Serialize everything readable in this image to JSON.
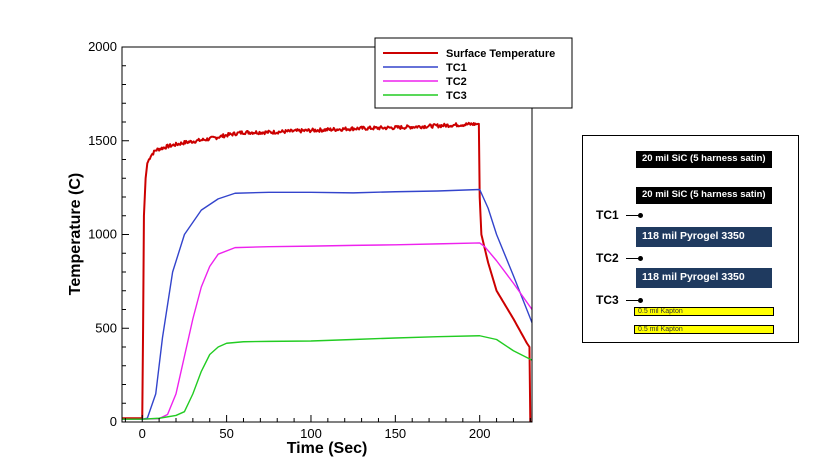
{
  "chart_data": {
    "type": "line",
    "title": "",
    "xlabel": "Time (Sec)",
    "ylabel": "Temperature (C)",
    "xlim": [
      -12,
      231
    ],
    "ylim": [
      0,
      2000
    ],
    "xticks": [
      0,
      50,
      100,
      150,
      200
    ],
    "yticks": [
      0,
      500,
      1000,
      1500,
      2000
    ],
    "grid": false,
    "legend_position": "top-right",
    "series": [
      {
        "name": "Surface Temperature",
        "color": "#cc0000",
        "noise": 10,
        "x": [
          -12,
          0,
          0.5,
          1,
          2,
          3,
          5,
          8,
          15,
          25,
          40,
          50,
          60,
          75,
          100,
          125,
          150,
          175,
          199,
          199.5,
          200,
          201,
          205,
          210,
          220,
          228,
          229.5,
          230,
          231
        ],
        "y": [
          20,
          20,
          500,
          1100,
          1300,
          1380,
          1420,
          1450,
          1470,
          1490,
          1510,
          1530,
          1545,
          1545,
          1555,
          1565,
          1570,
          1580,
          1590,
          1590,
          1200,
          1000,
          850,
          700,
          550,
          420,
          400,
          0,
          0
        ]
      },
      {
        "name": "TC1",
        "color": "#3344cc",
        "noise": 0,
        "x": [
          -12,
          0,
          3,
          8,
          12,
          18,
          25,
          35,
          45,
          55,
          75,
          100,
          125,
          150,
          175,
          200,
          205,
          210,
          220,
          231
        ],
        "y": [
          15,
          15,
          20,
          150,
          450,
          800,
          1000,
          1130,
          1190,
          1220,
          1225,
          1225,
          1222,
          1228,
          1232,
          1240,
          1140,
          1000,
          780,
          530
        ]
      },
      {
        "name": "TC2",
        "color": "#ee22ee",
        "noise": 0,
        "x": [
          -12,
          0,
          10,
          15,
          20,
          25,
          30,
          35,
          40,
          45,
          55,
          75,
          100,
          125,
          150,
          175,
          200,
          203,
          210,
          220,
          231
        ],
        "y": [
          15,
          15,
          18,
          40,
          150,
          350,
          550,
          720,
          830,
          895,
          930,
          935,
          938,
          942,
          945,
          950,
          955,
          935,
          860,
          740,
          600
        ]
      },
      {
        "name": "TC3",
        "color": "#22cc22",
        "noise": 0,
        "x": [
          -12,
          0,
          10,
          20,
          25,
          30,
          35,
          40,
          45,
          50,
          60,
          75,
          100,
          125,
          150,
          175,
          200,
          210,
          220,
          231
        ],
        "y": [
          15,
          15,
          20,
          35,
          55,
          150,
          270,
          360,
          400,
          420,
          428,
          430,
          432,
          440,
          448,
          455,
          460,
          440,
          380,
          330
        ]
      }
    ]
  },
  "layup": {
    "layers": [
      {
        "kind": "sic",
        "label": "20 mil SiC (5 harness satin)"
      },
      {
        "kind": "sic",
        "label": "20 mil SiC (5 harness satin)"
      },
      {
        "kind": "pyro",
        "label": "118 mil Pyrogel 3350"
      },
      {
        "kind": "pyro",
        "label": "118 mil Pyrogel 3350"
      },
      {
        "kind": "kapton",
        "label": "0.5 mil Kapton"
      },
      {
        "kind": "kapton",
        "label": "0.5 mil Kapton"
      }
    ],
    "thermocouples": [
      "TC1",
      "TC2",
      "TC3"
    ]
  }
}
